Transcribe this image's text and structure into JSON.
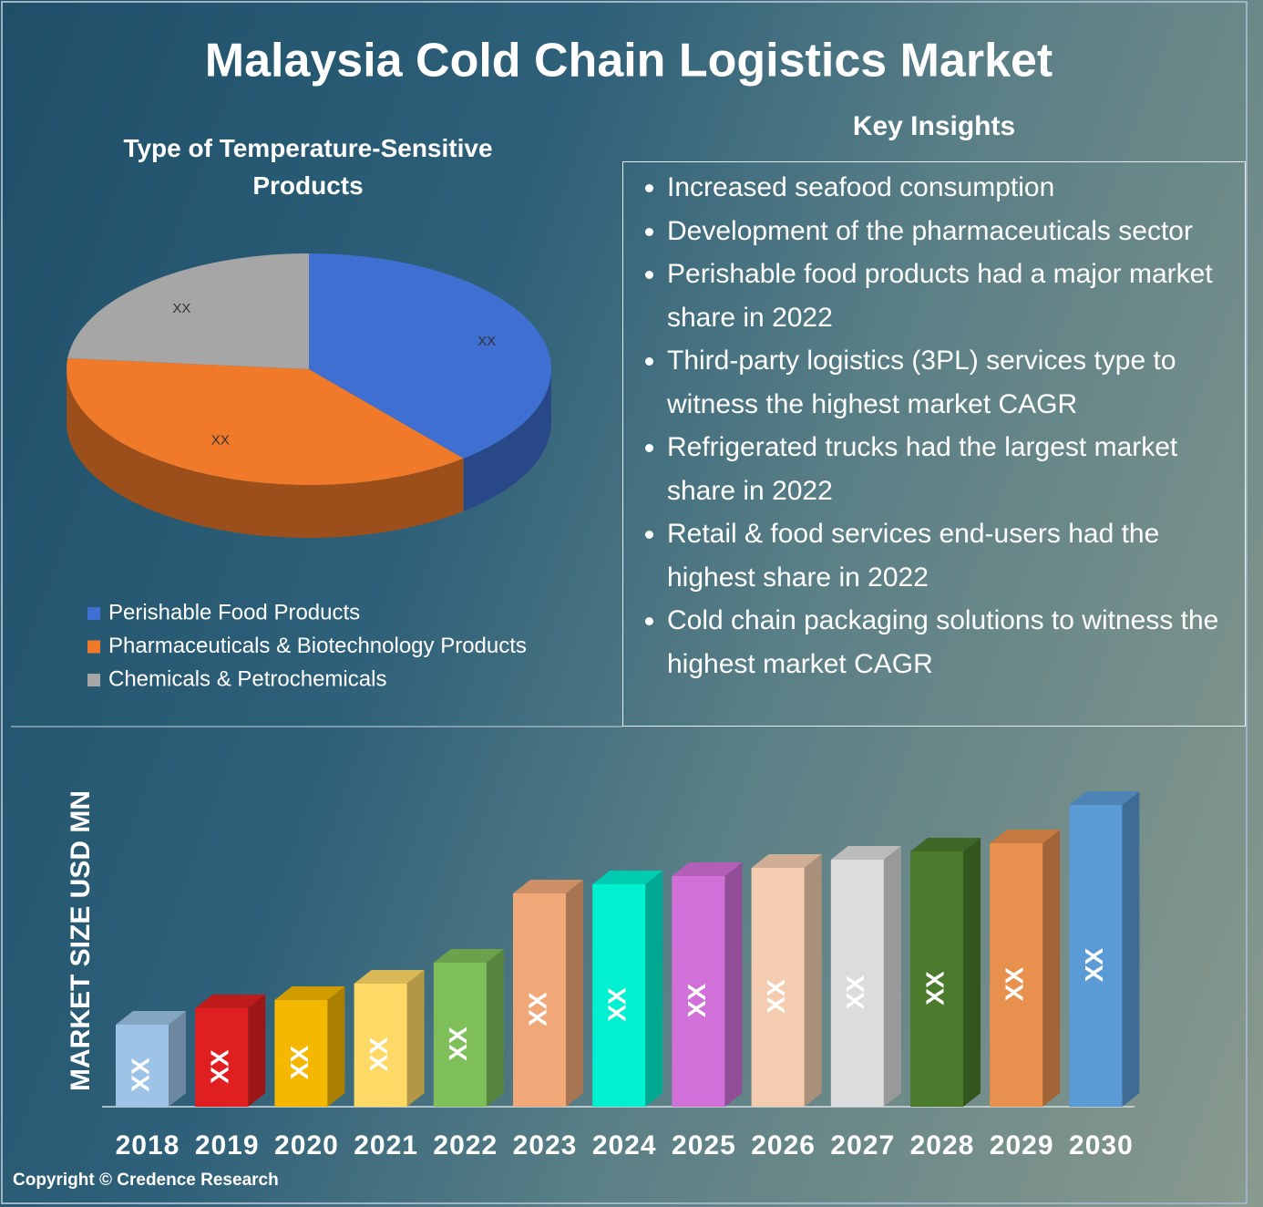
{
  "title": "Malaysia Cold Chain Logistics Market",
  "key_insights": {
    "title": "Key Insights",
    "items": [
      "Increased seafood consumption",
      "Development of the pharmaceuticals sector",
      "Perishable food products had a major market share in 2022",
      "Third-party logistics (3PL) services type to witness the highest market CAGR",
      "Refrigerated trucks had the largest market share in 2022",
      "Retail & food services end-users had the highest share in 2022",
      "Cold chain packaging solutions to witness the highest market CAGR"
    ]
  },
  "copyright": "Copyright © Credence Research",
  "chart_data": [
    {
      "type": "pie",
      "title": "Type of Temperature-Sensitive Products",
      "categories": [
        "Perishable Food Products",
        "Pharmaceuticals & Biotechnology Products",
        "Chemicals & Petrochemicals"
      ],
      "values": [
        39,
        37.5,
        23.5
      ],
      "value_labels": [
        "XX",
        "XX",
        "XX"
      ],
      "colors": [
        "#3f6fd0",
        "#f07a2a",
        "#a6a6a6"
      ],
      "legend": "bottom-left"
    },
    {
      "type": "bar",
      "y_label": "MARKET SIZE USD MN",
      "categories": [
        "2018",
        "2019",
        "2020",
        "2021",
        "2022",
        "2023",
        "2024",
        "2025",
        "2026",
        "2027",
        "2028",
        "2029",
        "2030"
      ],
      "values": [
        90,
        108,
        117,
        135,
        158,
        234,
        244,
        253,
        262,
        271,
        280,
        289,
        331
      ],
      "value_labels": [
        "XX",
        "XX",
        "XX",
        "XX",
        "XX",
        "XX",
        "XX",
        "XX",
        "XX",
        "XX",
        "XX",
        "XX",
        "XX"
      ],
      "colors": [
        "#9dc3e6",
        "#e02020",
        "#f5b800",
        "#ffd966",
        "#7fbf5a",
        "#f0a878",
        "#00f0d0",
        "#d070d8",
        "#f4cdb0",
        "#dcdcdc",
        "#4a7a2c",
        "#e8904e",
        "#5b9bd5"
      ]
    }
  ]
}
